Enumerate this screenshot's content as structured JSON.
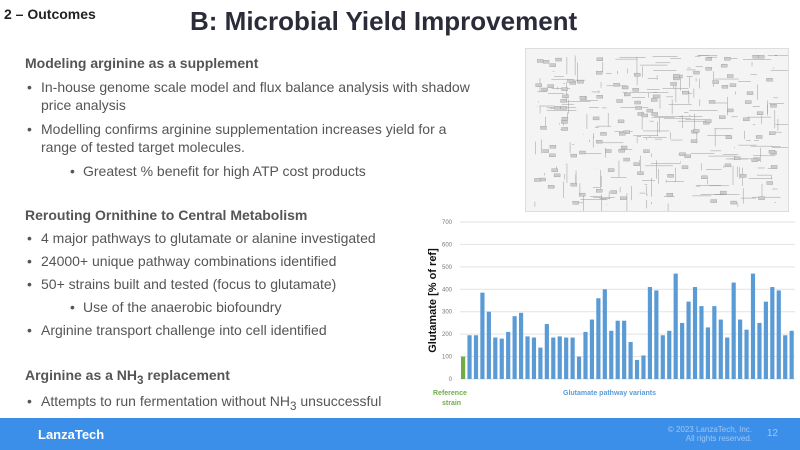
{
  "section": "2 – Outcomes",
  "title": "B: Microbial Yield Improvement",
  "blocks": {
    "b1_head": "Modeling arginine as a supplement",
    "b1_i1": "In-house genome scale model and flux balance analysis with shadow price analysis",
    "b1_i2": "Modelling confirms arginine supplementation increases yield for a range of tested target molecules.",
    "b1_i3": "Greatest % benefit for high ATP cost products",
    "b2_head": "Rerouting Ornithine to Central Metabolism",
    "b2_i1": "4 major pathways to glutamate or alanine investigated",
    "b2_i2": "24000+ unique pathway combinations identified",
    "b2_i3": "50+ strains built and tested (focus to glutamate)",
    "b2_i4": "Use of the anaerobic biofoundry",
    "b2_i5": "Arginine transport challenge into cell identified",
    "b3_head_pre": "Arginine as a NH",
    "b3_head_sub": "3",
    "b3_head_post": " replacement",
    "b3_i1_pre": "Attempts to run fermentation without NH",
    "b3_i1_sub": "3",
    "b3_i1_post": " unsuccessful"
  },
  "footer": {
    "logo": "LanzaTech",
    "copyright1": "© 2023 LanzaTech, Inc.",
    "copyright2": "All rights reserved.",
    "page": "12"
  },
  "chart_data": {
    "type": "bar",
    "ylabel": "Glutamate [% of ref]",
    "ylim": [
      0,
      700
    ],
    "yticks": [
      "0",
      "100",
      "200",
      "300",
      "400",
      "500",
      "600",
      "700"
    ],
    "grid": true,
    "groups": [
      {
        "name": "Reference strain",
        "color": "#70ad47"
      },
      {
        "name": "Glutamate pathway variants",
        "color": "#5b9bd5"
      }
    ],
    "reference": 100,
    "variants": [
      195,
      195,
      385,
      300,
      185,
      180,
      210,
      280,
      295,
      190,
      185,
      140,
      245,
      185,
      190,
      185,
      185,
      100,
      210,
      265,
      360,
      400,
      215,
      260,
      260,
      165,
      85,
      105,
      410,
      395,
      195,
      215,
      470,
      250,
      345,
      410,
      325,
      230,
      325,
      265,
      185,
      430,
      265,
      220,
      470,
      250,
      345,
      410,
      395,
      195,
      215
    ]
  }
}
